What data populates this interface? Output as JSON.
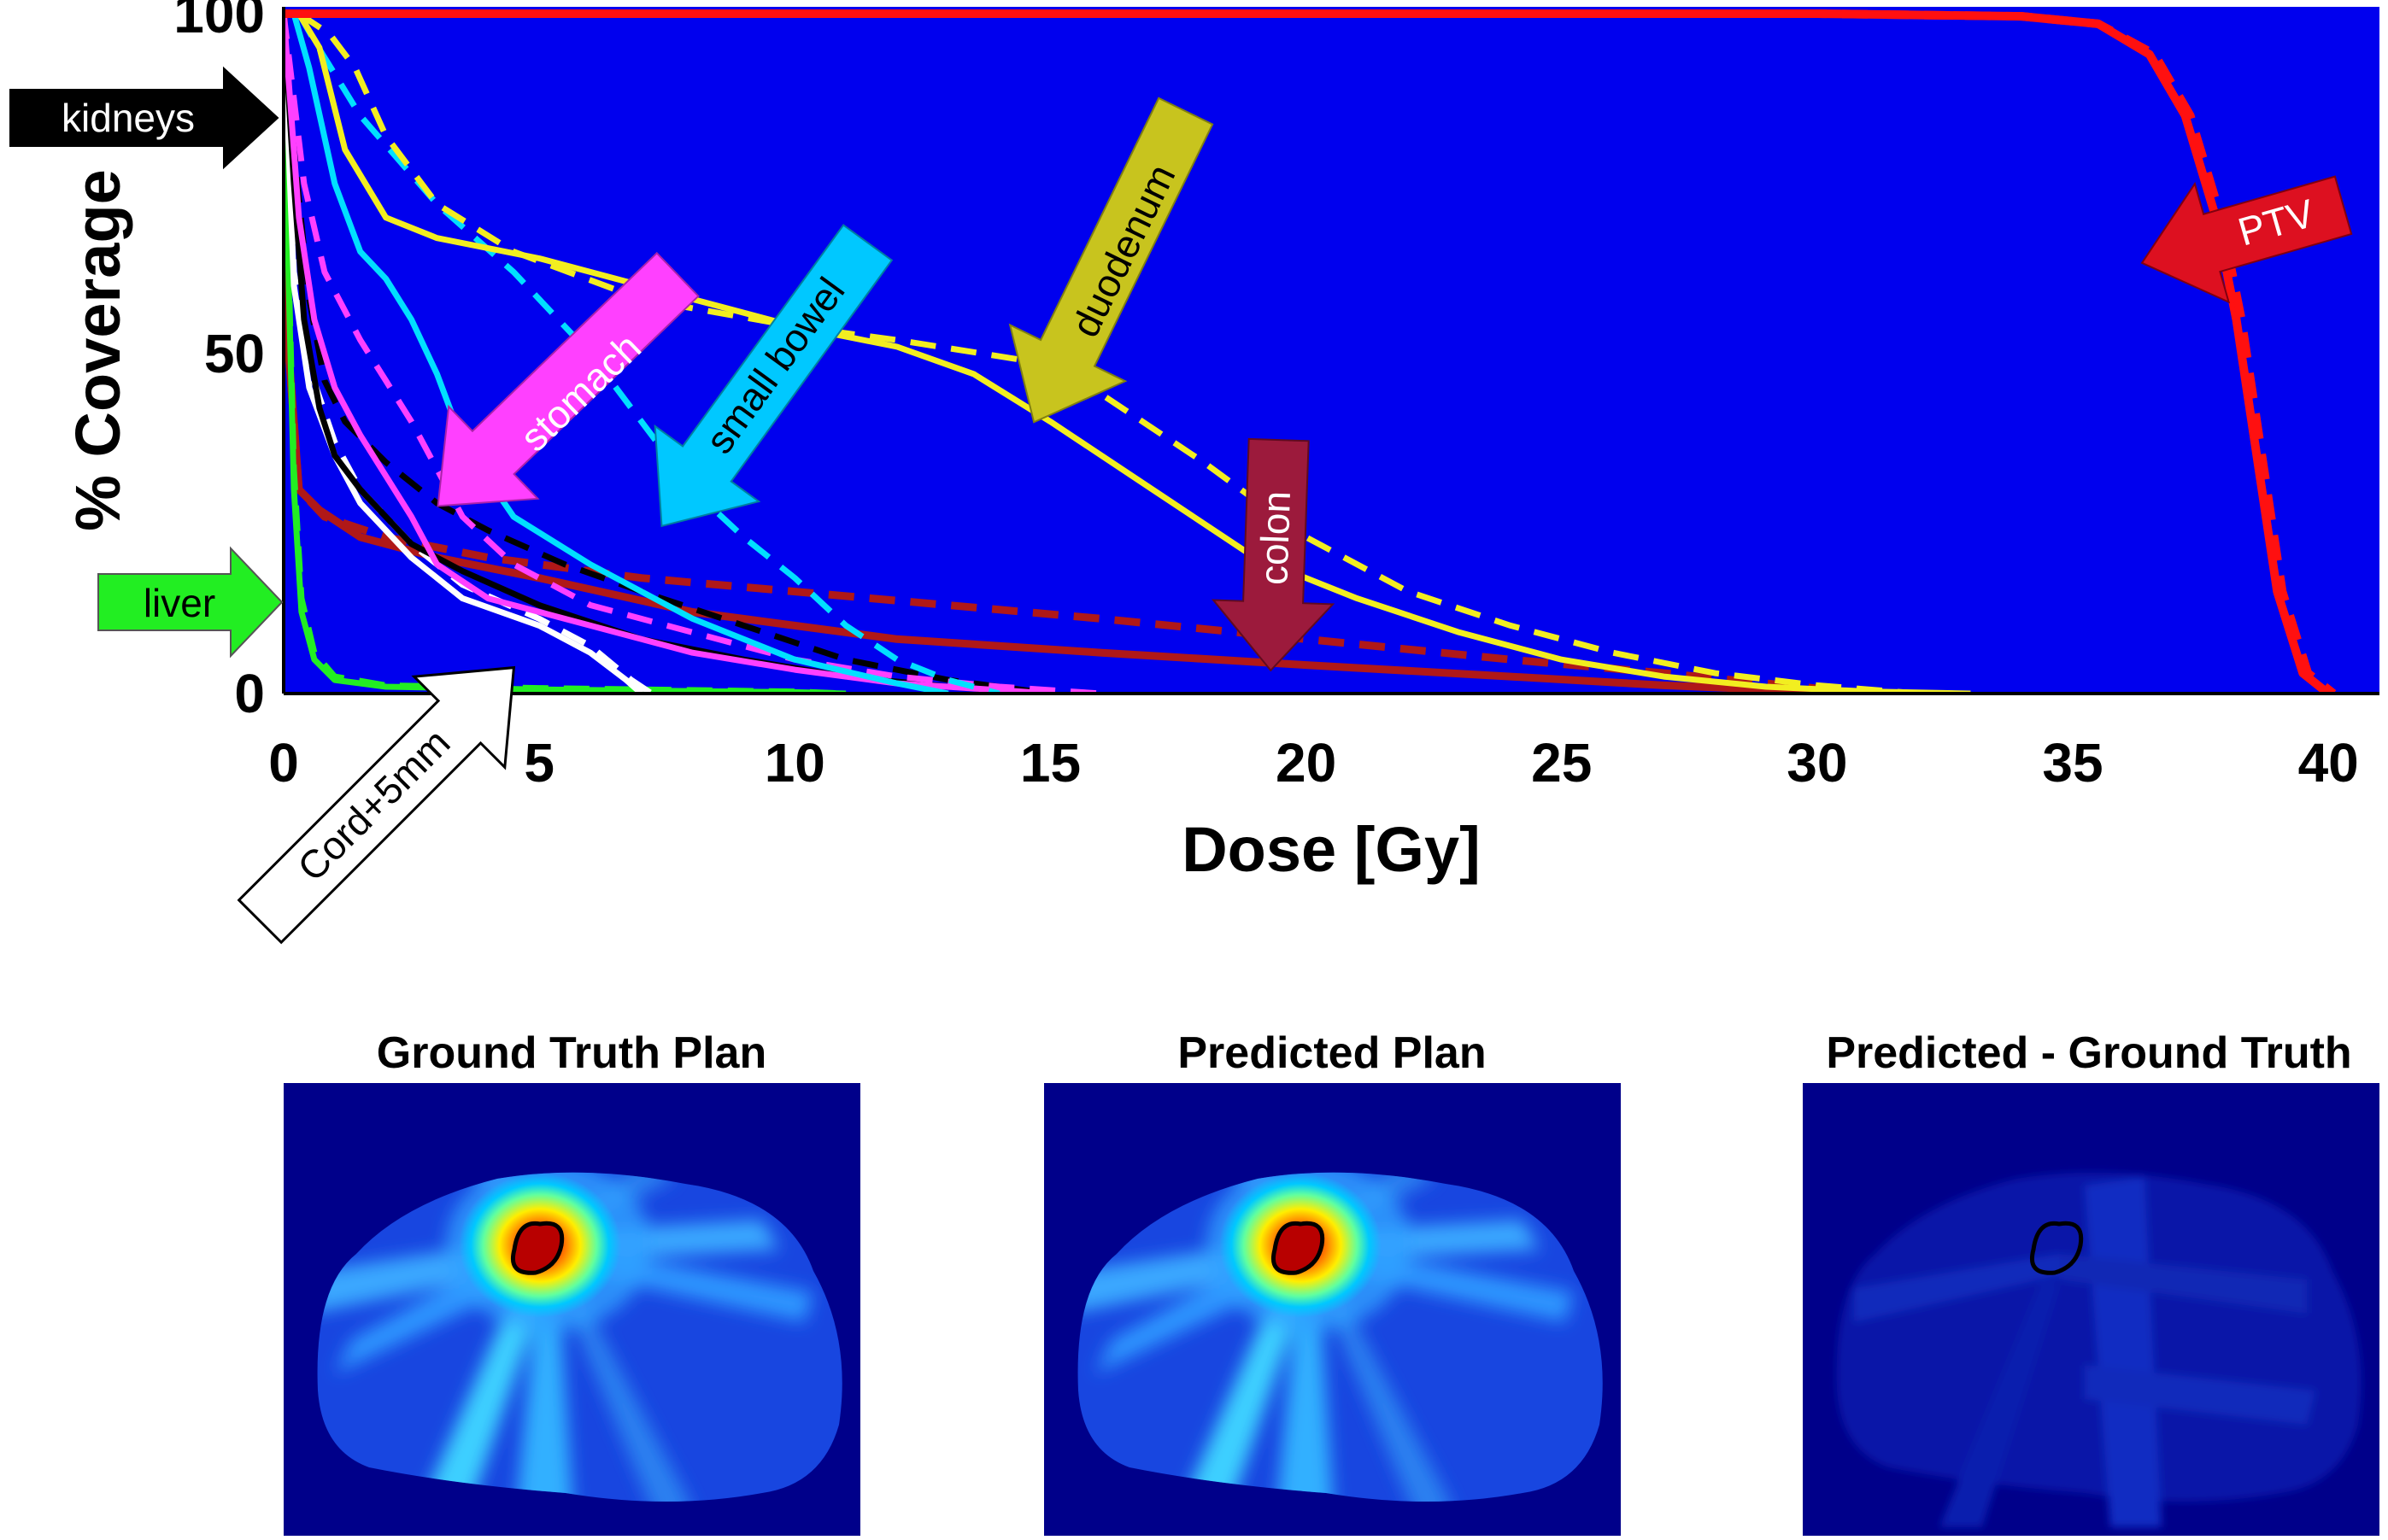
{
  "chart_data": {
    "type": "line",
    "title": "",
    "xlabel": "Dose [Gy]",
    "ylabel": "% Coverage",
    "xlim": [
      0,
      41
    ],
    "ylim": [
      0,
      101
    ],
    "x_ticks": [
      0,
      5,
      10,
      15,
      20,
      25,
      30,
      35,
      40
    ],
    "y_ticks": [
      0,
      50,
      100
    ],
    "grid": false,
    "background_color": "#0000ee",
    "legend": "arrow annotations pointing to curves",
    "line_styles": [
      "solid = ground truth",
      "dashed = predicted"
    ],
    "series": [
      {
        "name": "PTV",
        "color": "#ff1010",
        "solid": [
          [
            0,
            100
          ],
          [
            30,
            100
          ],
          [
            34,
            99.6
          ],
          [
            35.5,
            98.5
          ],
          [
            36.5,
            94
          ],
          [
            37.2,
            85
          ],
          [
            37.8,
            70
          ],
          [
            38.2,
            55
          ],
          [
            38.6,
            35
          ],
          [
            39,
            15
          ],
          [
            39.5,
            3
          ],
          [
            40,
            0
          ]
        ],
        "dashed": [
          [
            0,
            100
          ],
          [
            30,
            100
          ],
          [
            34,
            99.6
          ],
          [
            35.5,
            98.5
          ],
          [
            36.6,
            94
          ],
          [
            37.3,
            85
          ],
          [
            37.9,
            70
          ],
          [
            38.3,
            55
          ],
          [
            38.7,
            35
          ],
          [
            39.1,
            15
          ],
          [
            39.6,
            3
          ],
          [
            40.1,
            0
          ]
        ]
      },
      {
        "name": "duodenum",
        "color": "#f2ee20",
        "solid": [
          [
            0.3,
            100
          ],
          [
            0.7,
            95
          ],
          [
            1.2,
            80
          ],
          [
            2,
            70
          ],
          [
            3,
            67
          ],
          [
            5,
            64
          ],
          [
            8,
            58
          ],
          [
            10,
            54
          ],
          [
            12,
            51
          ],
          [
            13.5,
            47
          ],
          [
            15,
            40
          ],
          [
            17,
            30
          ],
          [
            19,
            20
          ],
          [
            21,
            14
          ],
          [
            23,
            9
          ],
          [
            25,
            5
          ],
          [
            27,
            2.5
          ],
          [
            29,
            1
          ],
          [
            31,
            0.3
          ],
          [
            33,
            0
          ]
        ],
        "dashed": [
          [
            0.3,
            100
          ],
          [
            0.9,
            97
          ],
          [
            1.4,
            92
          ],
          [
            2,
            82
          ],
          [
            3,
            72
          ],
          [
            4.5,
            65
          ],
          [
            7,
            58
          ],
          [
            10,
            54
          ],
          [
            12,
            52
          ],
          [
            14.5,
            49
          ],
          [
            16,
            44
          ],
          [
            18,
            34
          ],
          [
            20,
            23
          ],
          [
            22,
            15
          ],
          [
            24,
            10
          ],
          [
            26,
            6
          ],
          [
            28,
            3
          ],
          [
            30,
            1.2
          ],
          [
            32,
            0
          ]
        ]
      },
      {
        "name": "small bowel",
        "color": "#00e0ff",
        "solid": [
          [
            0.2,
            100
          ],
          [
            0.5,
            92
          ],
          [
            1,
            75
          ],
          [
            1.5,
            65
          ],
          [
            2,
            61
          ],
          [
            2.5,
            55
          ],
          [
            3,
            47
          ],
          [
            3.5,
            37
          ],
          [
            4.5,
            26
          ],
          [
            6,
            19
          ],
          [
            8,
            11
          ],
          [
            10,
            5
          ],
          [
            12,
            1.5
          ],
          [
            13,
            0
          ]
        ],
        "dashed": [
          [
            0.3,
            100
          ],
          [
            0.6,
            96
          ],
          [
            1.5,
            85
          ],
          [
            3,
            72
          ],
          [
            4.5,
            62
          ],
          [
            6,
            50
          ],
          [
            7,
            40
          ],
          [
            8,
            30
          ],
          [
            9,
            23
          ],
          [
            10,
            17
          ],
          [
            11,
            10
          ],
          [
            12,
            5
          ],
          [
            13,
            2
          ],
          [
            14,
            0
          ]
        ]
      },
      {
        "name": "stomach",
        "color": "#ff40ff",
        "solid": [
          [
            0,
            100
          ],
          [
            0.3,
            70
          ],
          [
            0.6,
            55
          ],
          [
            1,
            45
          ],
          [
            1.5,
            38
          ],
          [
            2,
            32
          ],
          [
            2.5,
            26
          ],
          [
            3,
            19
          ],
          [
            4,
            14
          ],
          [
            6,
            10
          ],
          [
            8,
            6
          ],
          [
            10,
            3.5
          ],
          [
            12,
            1.5
          ],
          [
            14,
            0.5
          ],
          [
            15,
            0
          ]
        ],
        "dashed": [
          [
            0,
            100
          ],
          [
            0.4,
            75
          ],
          [
            0.8,
            62
          ],
          [
            1.5,
            52
          ],
          [
            2,
            46
          ],
          [
            2.5,
            40
          ],
          [
            3,
            33
          ],
          [
            3.5,
            26
          ],
          [
            4.5,
            19
          ],
          [
            6,
            13
          ],
          [
            8,
            9
          ],
          [
            10,
            5
          ],
          [
            12,
            2.5
          ],
          [
            14,
            1
          ],
          [
            16,
            0
          ]
        ]
      },
      {
        "name": "kidneys",
        "color": "#000000",
        "solid": [
          [
            0,
            100
          ],
          [
            0.2,
            75
          ],
          [
            0.4,
            55
          ],
          [
            0.7,
            42
          ],
          [
            1,
            35
          ],
          [
            1.5,
            30
          ],
          [
            2.5,
            22
          ],
          [
            3.5,
            18
          ],
          [
            5,
            13
          ],
          [
            7,
            8
          ],
          [
            9,
            5
          ],
          [
            11,
            2.5
          ],
          [
            13,
            1
          ],
          [
            15,
            0
          ]
        ],
        "dashed": [
          [
            0,
            100
          ],
          [
            0.2,
            80
          ],
          [
            0.5,
            58
          ],
          [
            0.8,
            46
          ],
          [
            1.2,
            40
          ],
          [
            2,
            34
          ],
          [
            3,
            28
          ],
          [
            4,
            24
          ],
          [
            5.5,
            19
          ],
          [
            7,
            15
          ],
          [
            9,
            10
          ],
          [
            11,
            5
          ],
          [
            13,
            2
          ],
          [
            15,
            0
          ]
        ]
      },
      {
        "name": "colon",
        "color": "#b01818",
        "solid": [
          [
            0,
            100
          ],
          [
            0.1,
            50
          ],
          [
            0.3,
            30
          ],
          [
            0.7,
            27
          ],
          [
            1.5,
            23
          ],
          [
            3,
            20
          ],
          [
            5,
            17
          ],
          [
            8,
            12
          ],
          [
            12,
            8
          ],
          [
            16,
            6
          ],
          [
            20,
            4.2
          ],
          [
            24,
            2.5
          ],
          [
            27,
            1.2
          ],
          [
            30,
            0.3
          ],
          [
            31,
            0
          ]
        ],
        "dashed": [
          [
            0,
            100
          ],
          [
            0.1,
            50
          ],
          [
            0.3,
            30
          ],
          [
            0.8,
            26
          ],
          [
            2,
            23
          ],
          [
            4,
            20
          ],
          [
            7,
            17
          ],
          [
            10,
            15
          ],
          [
            13,
            13
          ],
          [
            16,
            11
          ],
          [
            20,
            8
          ],
          [
            24,
            5
          ],
          [
            27,
            3
          ],
          [
            29,
            1.5
          ],
          [
            31,
            0
          ]
        ]
      },
      {
        "name": "liver",
        "color": "#22ee22",
        "solid": [
          [
            0,
            100
          ],
          [
            0.1,
            60
          ],
          [
            0.2,
            30
          ],
          [
            0.35,
            12
          ],
          [
            0.6,
            5
          ],
          [
            1,
            2
          ],
          [
            2,
            1
          ],
          [
            5,
            0.6
          ],
          [
            10,
            0.2
          ],
          [
            11,
            0
          ]
        ],
        "dashed": [
          [
            0,
            100
          ],
          [
            0.1,
            62
          ],
          [
            0.2,
            33
          ],
          [
            0.35,
            14
          ],
          [
            0.6,
            6
          ],
          [
            1,
            2.5
          ],
          [
            2,
            1.2
          ],
          [
            5,
            0.8
          ],
          [
            10,
            0.3
          ],
          [
            11,
            0
          ]
        ]
      },
      {
        "name": "Cord+5mm",
        "color": "#ffffff",
        "solid": [
          [
            0,
            100
          ],
          [
            0.2,
            60
          ],
          [
            0.5,
            45
          ],
          [
            1,
            35
          ],
          [
            1.5,
            28
          ],
          [
            2.5,
            20
          ],
          [
            3.5,
            14
          ],
          [
            5,
            10
          ],
          [
            6,
            6
          ],
          [
            6.7,
            2
          ],
          [
            7,
            0
          ]
        ],
        "dashed": [
          [
            0,
            100
          ],
          [
            0.2,
            62
          ],
          [
            0.5,
            48
          ],
          [
            1,
            37
          ],
          [
            1.5,
            30
          ],
          [
            2.5,
            22
          ],
          [
            3.5,
            16
          ],
          [
            5,
            11
          ],
          [
            6,
            7
          ],
          [
            6.8,
            2
          ],
          [
            7.2,
            0
          ]
        ]
      }
    ],
    "annotations": [
      {
        "label": "kidneys",
        "fill": "#000000",
        "text": "#ffffff"
      },
      {
        "label": "liver",
        "fill": "#22ee22",
        "text": "#000000"
      },
      {
        "label": "stomach",
        "fill": "#ff40ff",
        "text": "#ffffff"
      },
      {
        "label": "small bowel",
        "fill": "#00c8ff",
        "text": "#000000"
      },
      {
        "label": "duodenum",
        "fill": "#c8c41e",
        "text": "#000000"
      },
      {
        "label": "colon",
        "fill": "#9c1a3c",
        "text": "#ffffff"
      },
      {
        "label": "PTV",
        "fill": "#dd1020",
        "text": "#ffffff"
      },
      {
        "label": "Cord+5mm",
        "fill": "#ffffff",
        "text": "#000000"
      }
    ]
  },
  "panels": [
    {
      "title": "Ground Truth Plan",
      "type": "dose-map"
    },
    {
      "title": "Predicted Plan",
      "type": "dose-map"
    },
    {
      "title": "Predicted - Ground Truth",
      "type": "difference-map"
    }
  ]
}
